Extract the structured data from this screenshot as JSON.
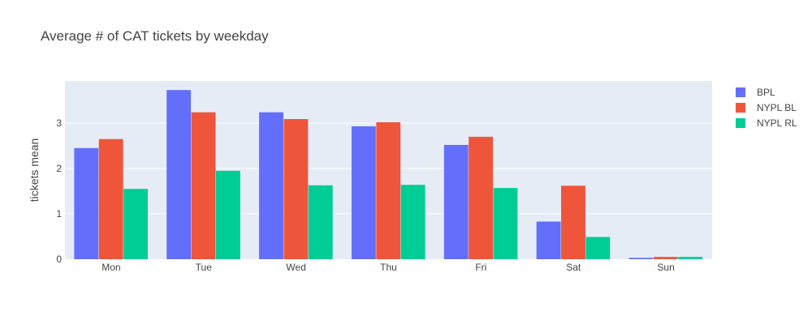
{
  "chart_data": {
    "type": "bar",
    "title": "Average # of CAT tickets by weekday",
    "xlabel": "",
    "ylabel": "tickets mean",
    "categories": [
      "Mon",
      "Tue",
      "Wed",
      "Thu",
      "Fri",
      "Sat",
      "Sun"
    ],
    "series": [
      {
        "name": "BPL",
        "color": "#636efa",
        "values": [
          2.45,
          3.73,
          3.24,
          2.93,
          2.52,
          0.83,
          0.03
        ]
      },
      {
        "name": "NYPL BL",
        "color": "#ef553b",
        "values": [
          2.65,
          3.24,
          3.09,
          3.02,
          2.7,
          1.62,
          0.05
        ]
      },
      {
        "name": "NYPL RL",
        "color": "#00cc96",
        "values": [
          1.55,
          1.95,
          1.63,
          1.64,
          1.57,
          0.49,
          0.05
        ]
      }
    ],
    "yticks": [
      0,
      1,
      2,
      3
    ],
    "ylim": [
      0,
      3.93
    ],
    "grid": true,
    "legend_position": "top-right",
    "plot_background": "#e5ecf6"
  }
}
